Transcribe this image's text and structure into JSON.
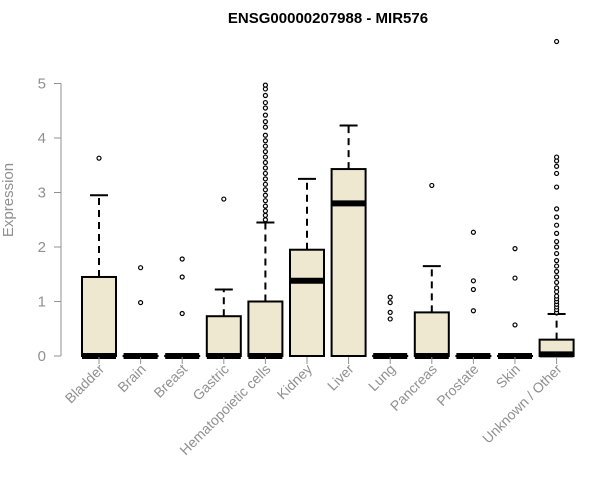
{
  "chart_data": {
    "type": "boxplot",
    "title": "ENSG00000207988 - MIR576",
    "ylabel": "Expression",
    "xlabel": "",
    "ylim": [
      0,
      5.8
    ],
    "yticks": [
      0,
      1,
      2,
      3,
      4,
      5
    ],
    "grid": false,
    "legend": "none",
    "box_color": "#EEE8D0",
    "categories": [
      "Bladder",
      "Brain",
      "Breast",
      "Gastric",
      "Hematopoietic cells",
      "Kidney",
      "Liver",
      "Lung",
      "Pancreas",
      "Prostate",
      "Skin",
      "Unknown / Other"
    ],
    "boxes": [
      {
        "q1": 0,
        "median": 0,
        "q3": 1.45,
        "whisker_low": 0,
        "whisker_high": 2.95,
        "outliers": [
          3.63
        ]
      },
      {
        "q1": 0,
        "median": 0,
        "q3": 0,
        "whisker_low": 0,
        "whisker_high": 0,
        "outliers": [
          1.62,
          0.98
        ]
      },
      {
        "q1": 0,
        "median": 0,
        "q3": 0,
        "whisker_low": 0,
        "whisker_high": 0,
        "outliers": [
          1.78,
          1.45,
          0.78
        ]
      },
      {
        "q1": 0,
        "median": 0,
        "q3": 0.73,
        "whisker_low": 0,
        "whisker_high": 1.22,
        "outliers": [
          2.88
        ]
      },
      {
        "q1": 0,
        "median": 0,
        "q3": 1.0,
        "whisker_low": 0,
        "whisker_high": 2.45,
        "outliers": [
          2.5,
          2.58,
          2.66,
          2.75,
          2.85,
          2.95,
          3.05,
          3.15,
          3.25,
          3.35,
          3.45,
          3.55,
          3.65,
          3.75,
          3.85,
          3.95,
          4.05,
          4.2,
          4.3,
          4.42,
          4.55,
          4.65,
          4.78,
          4.9,
          4.97
        ]
      },
      {
        "q1": 0,
        "median": 1.38,
        "q3": 1.95,
        "whisker_low": 0,
        "whisker_high": 3.25,
        "outliers": []
      },
      {
        "q1": 0,
        "median": 2.8,
        "q3": 3.43,
        "whisker_low": 0,
        "whisker_high": 4.23,
        "outliers": []
      },
      {
        "q1": 0,
        "median": 0,
        "q3": 0,
        "whisker_low": 0,
        "whisker_high": 0,
        "outliers": [
          1.08,
          0.98,
          0.8,
          0.68
        ]
      },
      {
        "q1": 0,
        "median": 0,
        "q3": 0.8,
        "whisker_low": 0,
        "whisker_high": 1.65,
        "outliers": [
          3.13
        ]
      },
      {
        "q1": 0,
        "median": 0,
        "q3": 0,
        "whisker_low": 0,
        "whisker_high": 0,
        "outliers": [
          2.27,
          1.38,
          1.22,
          0.83
        ]
      },
      {
        "q1": 0,
        "median": 0,
        "q3": 0,
        "whisker_low": 0,
        "whisker_high": 0,
        "outliers": [
          1.97,
          1.43,
          0.57
        ]
      },
      {
        "q1": 0,
        "median": 0.03,
        "q3": 0.3,
        "whisker_low": 0,
        "whisker_high": 0.77,
        "outliers": [
          0.8,
          0.85,
          0.9,
          0.95,
          1.0,
          1.05,
          1.1,
          1.18,
          1.25,
          1.35,
          1.45,
          1.55,
          1.65,
          1.75,
          1.88,
          2.0,
          2.1,
          2.25,
          2.4,
          2.55,
          2.7,
          3.1,
          3.35,
          3.48,
          3.58,
          3.65,
          5.77
        ]
      }
    ]
  }
}
